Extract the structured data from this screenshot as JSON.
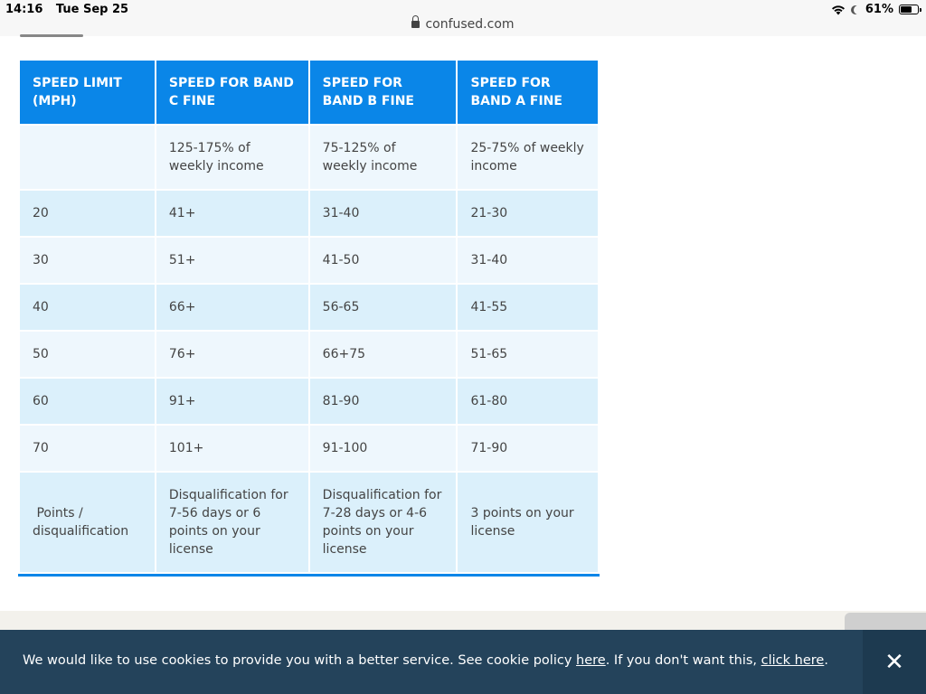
{
  "status_bar": {
    "time": "14:16",
    "date": "Tue Sep 25",
    "battery_percent": "61%",
    "battery_level": 0.61,
    "icons": [
      "wifi-icon",
      "moon-icon",
      "battery-icon"
    ]
  },
  "browser": {
    "url": "confused.com",
    "icons": [
      "lock-icon"
    ]
  },
  "table": {
    "headers": [
      "SPEED LIMIT (MPH)",
      "SPEED FOR BAND C FINE",
      "SPEED FOR BAND B FINE",
      "SPEED FOR BAND A FINE"
    ],
    "income_row": [
      "",
      "125-175% of weekly income",
      "75-125% of weekly income",
      "25-75% of weekly income"
    ],
    "rows": [
      [
        "20",
        "41+",
        "31-40",
        "21-30"
      ],
      [
        "30",
        "51+",
        "41-50",
        "31-40"
      ],
      [
        "40",
        "66+",
        "56-65",
        "41-55"
      ],
      [
        "50",
        "76+",
        "66+75",
        "51-65"
      ],
      [
        "60",
        "91+",
        "81-90",
        "61-80"
      ],
      [
        "70",
        "101+",
        "91-100",
        "71-90"
      ]
    ],
    "points_row": [
      " Points / disqualification",
      "Disqualification for 7-56 days or 6 points on your license",
      "Disqualification for 7-28 days or 4-6 points on your license",
      "3 points on your license"
    ]
  },
  "cookie_banner": {
    "text_before": "We would like to use cookies to provide you with a better service. See cookie policy ",
    "policy_link": "here",
    "text_middle": ". If you don't want this, ",
    "optout_link": "click here",
    "text_after": ".",
    "close_label": "✕"
  },
  "colors": {
    "header_blue": "#0a86e8",
    "row_light": "#eef7fd",
    "row_dark": "#dbf0fb",
    "banner_bg": "#24435b"
  }
}
